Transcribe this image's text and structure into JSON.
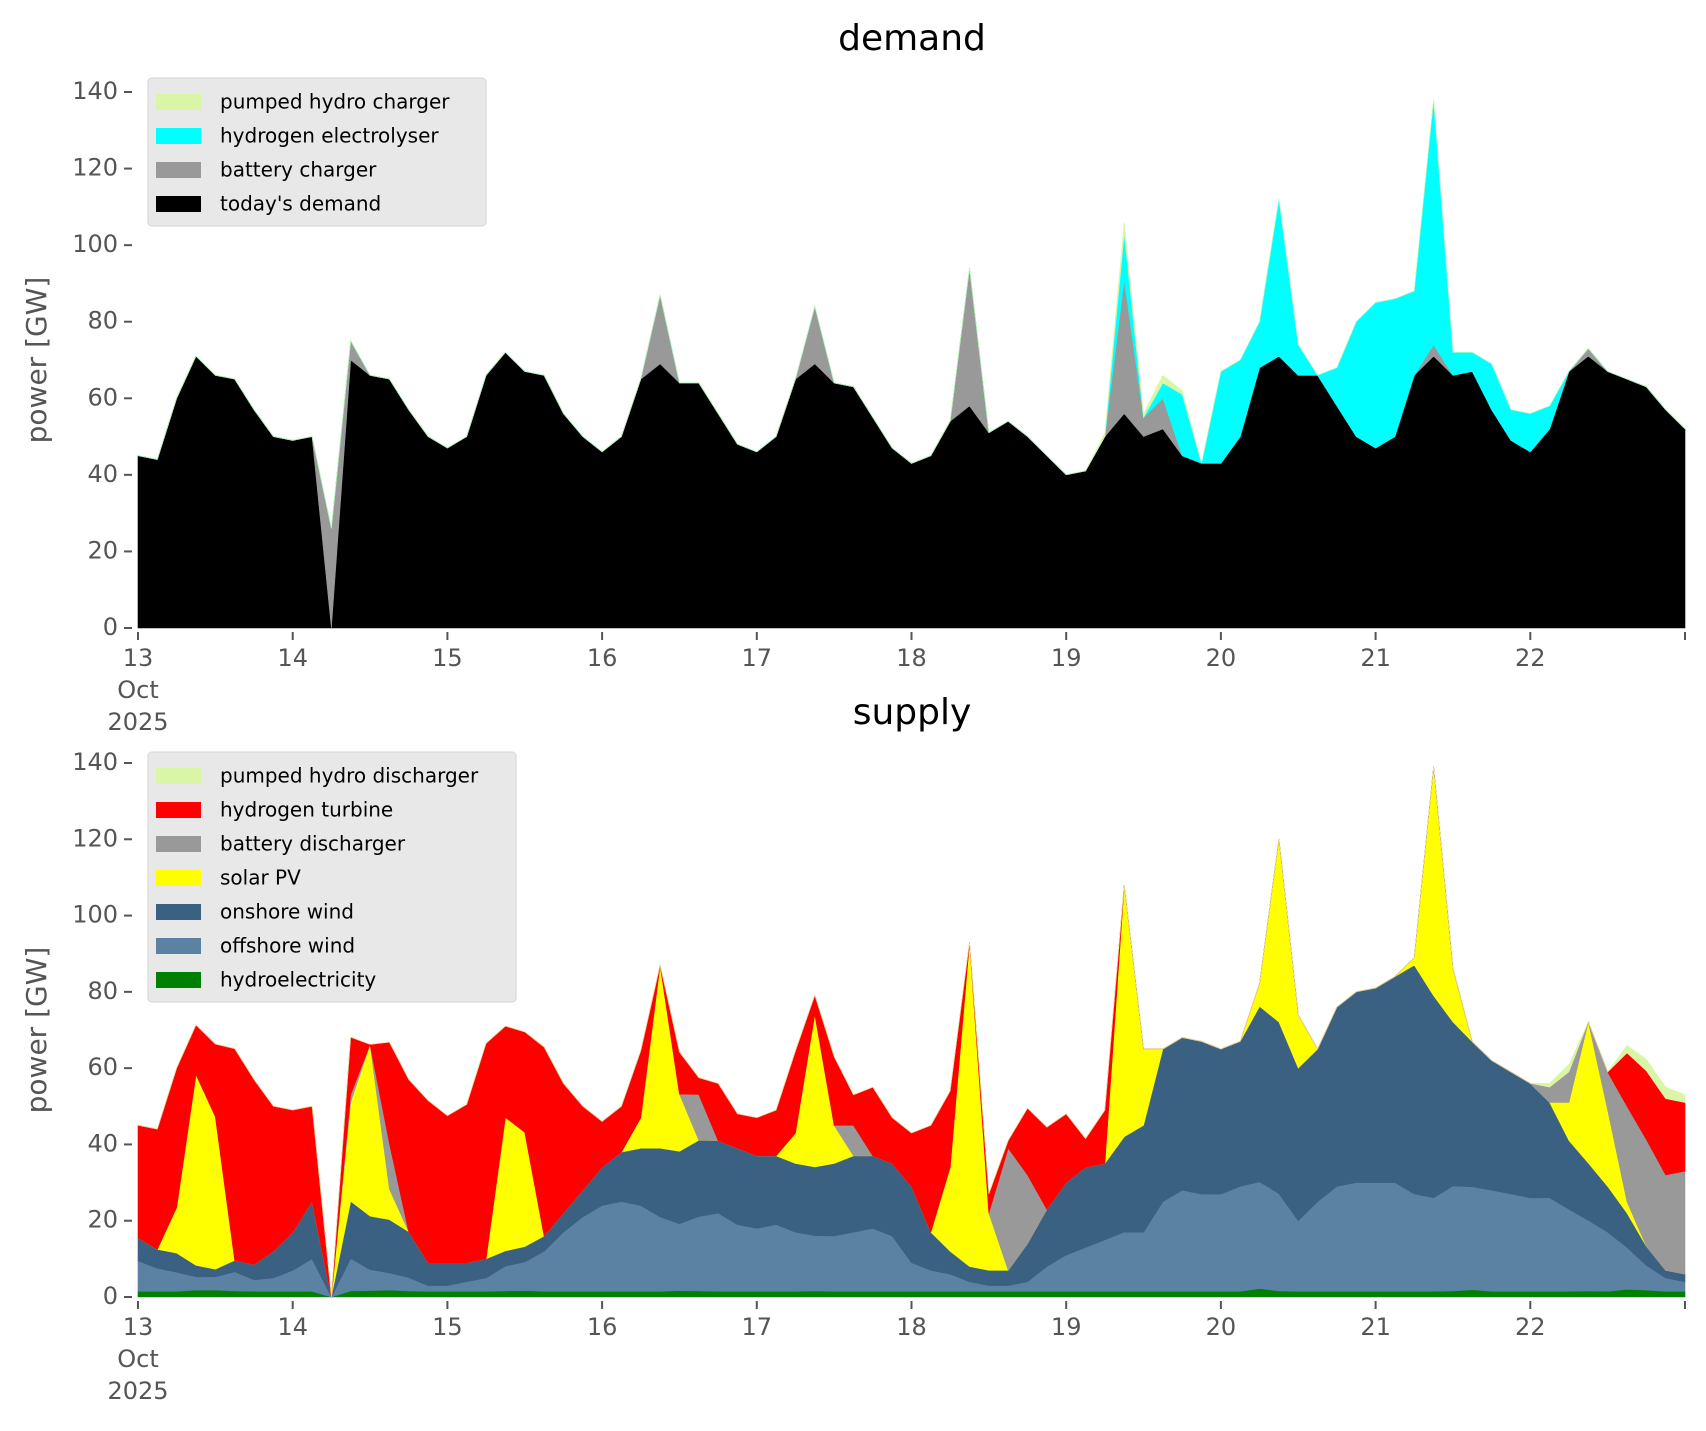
{
  "chart_data": [
    {
      "type": "area",
      "stacked": true,
      "title": "demand",
      "xlabel": "",
      "ylabel": "power [GW]",
      "ylim": [
        0,
        140
      ],
      "xlim": [
        13,
        23
      ],
      "yticks": [
        0,
        20,
        40,
        60,
        80,
        100,
        120,
        140
      ],
      "xticks": [
        {
          "value": 13,
          "label": [
            "13",
            "Oct",
            "2025"
          ]
        },
        {
          "value": 14,
          "label": [
            "14"
          ]
        },
        {
          "value": 15,
          "label": [
            "15"
          ]
        },
        {
          "value": 16,
          "label": [
            "16"
          ]
        },
        {
          "value": 17,
          "label": [
            "17"
          ]
        },
        {
          "value": 18,
          "label": [
            "18"
          ]
        },
        {
          "value": 19,
          "label": [
            "19"
          ]
        },
        {
          "value": 20,
          "label": [
            "20"
          ]
        },
        {
          "value": 21,
          "label": [
            "21"
          ]
        },
        {
          "value": 22,
          "label": [
            "22"
          ]
        },
        {
          "value": 23,
          "label": [
            ""
          ]
        }
      ],
      "grid": false,
      "legend_position": "top-left",
      "x_step_days": 0.125,
      "x_start": 13,
      "series": [
        {
          "name": "today's demand",
          "color": "#000000",
          "values": [
            45,
            44,
            60,
            71,
            66,
            65,
            57,
            50,
            49,
            50,
            0,
            70,
            66,
            65,
            57,
            50,
            47,
            50,
            66,
            72,
            67,
            66,
            56,
            50,
            46,
            50,
            65,
            69,
            64,
            64,
            56,
            48,
            46,
            50,
            65,
            69,
            64,
            63,
            55,
            47,
            43,
            45,
            54,
            58,
            51,
            54,
            50,
            45,
            40,
            41,
            50,
            56,
            50,
            52,
            45,
            43,
            43,
            50,
            68,
            71,
            66,
            66,
            58,
            50,
            47,
            50,
            66,
            71,
            66,
            67,
            57,
            49,
            46,
            52,
            67,
            71,
            67,
            65,
            63,
            57,
            52
          ]
        },
        {
          "name": "battery charger",
          "color": "#999999",
          "values": [
            0,
            0,
            0,
            0,
            0,
            0,
            0,
            0,
            0,
            0,
            26,
            5,
            0,
            0,
            0,
            0,
            0,
            0,
            0,
            0,
            0,
            0,
            0,
            0,
            0,
            0,
            0,
            18,
            0,
            0,
            0,
            0,
            0,
            0,
            0,
            15,
            0,
            0,
            0,
            0,
            0,
            0,
            0,
            36,
            0,
            0,
            0,
            0,
            0,
            0,
            0,
            35,
            5,
            8,
            0,
            0,
            0,
            0,
            0,
            0,
            0,
            0,
            0,
            0,
            0,
            0,
            0,
            3,
            0,
            0,
            0,
            0,
            0,
            0,
            0,
            2,
            0,
            0,
            0,
            0,
            0
          ]
        },
        {
          "name": "hydrogen electrolyser",
          "color": "#00ffff",
          "values": [
            0,
            0,
            0,
            0,
            0,
            0,
            0,
            0,
            0,
            0,
            0,
            0,
            0,
            0,
            0,
            0,
            0,
            0,
            0,
            0,
            0,
            0,
            0,
            0,
            0,
            0,
            0,
            0,
            0,
            0,
            0,
            0,
            0,
            0,
            0,
            0,
            0,
            0,
            0,
            0,
            0,
            0,
            0,
            0,
            0,
            0,
            0,
            0,
            0,
            0,
            0,
            12,
            0,
            4,
            16,
            0,
            24,
            20,
            12,
            41,
            8,
            0,
            10,
            30,
            38,
            36,
            22,
            64,
            6,
            5,
            12,
            8,
            10,
            6,
            0,
            0,
            0,
            0,
            0,
            0,
            0
          ]
        },
        {
          "name": "pumped hydro charger",
          "color": "#d9f5a6",
          "values": [
            0,
            0,
            0,
            0,
            0,
            0,
            0,
            0,
            0,
            0,
            0,
            0,
            0,
            0,
            0,
            0,
            0,
            0,
            0,
            0,
            0,
            0,
            0,
            0,
            0,
            0,
            0,
            0,
            0,
            0,
            0,
            0,
            0,
            0,
            0,
            0,
            0,
            0,
            0,
            0,
            0,
            0,
            0,
            0,
            0,
            0,
            0,
            0,
            0,
            0,
            1,
            3,
            1,
            2,
            1,
            0,
            0,
            0,
            0,
            0,
            0,
            0,
            0,
            0,
            0,
            0,
            0,
            0,
            0,
            0,
            0,
            0,
            0,
            0,
            0,
            0,
            0,
            0,
            0,
            0,
            0
          ]
        }
      ]
    },
    {
      "type": "area",
      "stacked": true,
      "title": "supply",
      "xlabel": "",
      "ylabel": "power [GW]",
      "ylim": [
        0,
        140
      ],
      "xlim": [
        13,
        23
      ],
      "yticks": [
        0,
        20,
        40,
        60,
        80,
        100,
        120,
        140
      ],
      "xticks": [
        {
          "value": 13,
          "label": [
            "13",
            "Oct",
            "2025"
          ]
        },
        {
          "value": 14,
          "label": [
            "14"
          ]
        },
        {
          "value": 15,
          "label": [
            "15"
          ]
        },
        {
          "value": 16,
          "label": [
            "16"
          ]
        },
        {
          "value": 17,
          "label": [
            "17"
          ]
        },
        {
          "value": 18,
          "label": [
            "18"
          ]
        },
        {
          "value": 19,
          "label": [
            "19"
          ]
        },
        {
          "value": 20,
          "label": [
            "20"
          ]
        },
        {
          "value": 21,
          "label": [
            "21"
          ]
        },
        {
          "value": 22,
          "label": [
            "22"
          ]
        },
        {
          "value": 23,
          "label": [
            ""
          ]
        }
      ],
      "grid": false,
      "legend_position": "top-left",
      "x_step_days": 0.125,
      "x_start": 13,
      "series": [
        {
          "name": "hydroelectricity",
          "color": "#008000",
          "values": [
            1.5,
            1.5,
            1.5,
            1.8,
            1.8,
            1.6,
            1.5,
            1.5,
            1.5,
            1.5,
            0,
            1.6,
            1.7,
            1.8,
            1.6,
            1.5,
            1.5,
            1.5,
            1.5,
            1.6,
            1.7,
            1.5,
            1.5,
            1.5,
            1.5,
            1.5,
            1.5,
            1.5,
            1.7,
            1.6,
            1.5,
            1.5,
            1.5,
            1.5,
            1.5,
            1.6,
            1.5,
            1.5,
            1.5,
            1.5,
            1.5,
            1.5,
            1.5,
            1.5,
            1.5,
            1.5,
            1.5,
            1.5,
            1.5,
            1.5,
            1.5,
            1.5,
            1.5,
            1.5,
            1.5,
            1.5,
            1.5,
            1.5,
            2.2,
            1.6,
            1.5,
            1.5,
            1.5,
            1.5,
            1.5,
            1.5,
            1.5,
            1.5,
            1.6,
            1.9,
            1.5,
            1.5,
            1.5,
            1.5,
            1.5,
            1.6,
            1.5,
            2,
            1.8,
            1.5,
            1.5
          ]
        },
        {
          "name": "offshore wind",
          "color": "#5b81a3",
          "values": [
            8,
            6,
            5,
            3.5,
            3.5,
            5,
            3,
            3.5,
            5.5,
            8.5,
            0,
            8.5,
            5.5,
            4.5,
            3.5,
            1.5,
            1.5,
            2.5,
            3.5,
            6.5,
            7.5,
            10.5,
            15.5,
            19.5,
            22.5,
            23.5,
            22.5,
            19.5,
            17.5,
            19.5,
            20.5,
            17.5,
            16.5,
            17.5,
            15.5,
            14.5,
            14.5,
            15.5,
            16.5,
            14.5,
            7.5,
            5.5,
            4.5,
            2.5,
            1.5,
            1.5,
            2.5,
            6.5,
            9.5,
            11.5,
            13.5,
            15.5,
            15.5,
            23.5,
            26.5,
            25.5,
            25.5,
            27.5,
            28,
            25.5,
            18.5,
            23.5,
            27.5,
            28.5,
            28.5,
            28.5,
            25.5,
            24.5,
            27.5,
            27,
            26.5,
            25.5,
            24.5,
            24.5,
            21.5,
            18.5,
            15.5,
            11,
            6.5,
            3.5,
            2.5
          ]
        },
        {
          "name": "onshore wind",
          "color": "#3b6182",
          "values": [
            6,
            5,
            5,
            3,
            2,
            3,
            4,
            7,
            10,
            15,
            0,
            15,
            14,
            14,
            12,
            6,
            6,
            5,
            5,
            4,
            4,
            4,
            5,
            7,
            10,
            13,
            15,
            18,
            19,
            20,
            19,
            20,
            19,
            18,
            18,
            18,
            19,
            20,
            19,
            19,
            20,
            10,
            6,
            4,
            4,
            4,
            10,
            15,
            19,
            21,
            20,
            25,
            28,
            40,
            40,
            40,
            38,
            38,
            46,
            45,
            40,
            40,
            47,
            50,
            51,
            54,
            60,
            53,
            43,
            38,
            34,
            32,
            30,
            25,
            18,
            15,
            12,
            9,
            5,
            2,
            2
          ]
        },
        {
          "name": "solar PV",
          "color": "#ffff00",
          "values": [
            0,
            0,
            12,
            50,
            40,
            0,
            0,
            0,
            0,
            0,
            0,
            26,
            45,
            8,
            0,
            0,
            0,
            0,
            0,
            35,
            30,
            0,
            0,
            0,
            0,
            0,
            8,
            48,
            15,
            0,
            0,
            0,
            0,
            0,
            8,
            40,
            10,
            0,
            0,
            0,
            0,
            0,
            22,
            85,
            15,
            0,
            0,
            0,
            0,
            0,
            0,
            66,
            20,
            0,
            0,
            0,
            0,
            0,
            6,
            48,
            14,
            0,
            0,
            0,
            0,
            0,
            2,
            60,
            14,
            0,
            0,
            0,
            0,
            0,
            10,
            37,
            20,
            3,
            0,
            0,
            0
          ]
        },
        {
          "name": "battery discharger",
          "color": "#999999",
          "values": [
            0,
            0,
            0,
            0,
            0,
            0,
            0,
            0,
            0,
            0,
            0,
            2,
            0,
            12,
            0,
            0,
            0,
            0,
            0,
            0,
            0,
            0,
            0,
            0,
            0,
            0,
            0,
            0,
            0,
            12,
            0,
            0,
            0,
            0,
            0,
            0,
            0,
            8,
            0,
            0,
            0,
            0,
            0,
            0,
            0,
            32,
            18,
            0,
            0,
            0,
            0,
            0,
            0,
            0,
            0,
            0,
            0,
            0,
            0,
            0,
            0,
            0,
            0,
            0,
            0,
            0,
            0,
            0,
            0,
            0,
            0,
            0,
            0,
            4,
            8,
            0,
            10,
            25,
            28,
            25,
            27
          ]
        },
        {
          "name": "hydrogen turbine",
          "color": "#ff0000",
          "values": [
            29.5,
            31.5,
            36.5,
            13,
            19,
            55.5,
            48.5,
            38,
            32,
            25,
            0,
            15,
            0,
            26.5,
            39.9,
            42.5,
            38.5,
            41.5,
            56.5,
            23.9,
            26.3,
            49.5,
            34,
            22,
            12,
            12,
            17.5,
            0,
            11,
            4.4,
            15,
            9,
            10,
            12,
            21.5,
            5,
            18,
            8,
            18,
            12,
            14,
            28,
            20,
            0,
            5,
            2,
            17.5,
            21.5,
            18,
            7.5,
            14,
            0,
            0,
            0,
            0,
            0,
            0,
            0,
            0,
            0,
            0,
            0,
            0,
            0,
            0,
            0,
            0,
            0,
            0,
            0,
            0,
            0,
            0,
            0,
            0,
            0,
            0,
            14,
            18,
            20,
            18
          ]
        },
        {
          "name": "pumped hydro discharger",
          "color": "#d9f5a6",
          "values": [
            0,
            0,
            0,
            0,
            0,
            0,
            0,
            0,
            0,
            0,
            0,
            0,
            0,
            0,
            0,
            0,
            0,
            0,
            0,
            0,
            0,
            0,
            0,
            0,
            0,
            0,
            0,
            0,
            0,
            0,
            0,
            0,
            0,
            0,
            0,
            0,
            0,
            0,
            0,
            0,
            0,
            0,
            0,
            0,
            0,
            0,
            0,
            0,
            0,
            0,
            0,
            0,
            0,
            0,
            0,
            0,
            0,
            0,
            0,
            0,
            0,
            0,
            0,
            0,
            0,
            0,
            0,
            0,
            0,
            0,
            0,
            0,
            0,
            1,
            2,
            0,
            0,
            2,
            3,
            3,
            2
          ]
        }
      ]
    }
  ],
  "legends": [
    {
      "entries": [
        "pumped hydro charger",
        "hydrogen electrolyser",
        "battery charger",
        "today's demand"
      ],
      "colors": [
        "#d9f5a6",
        "#00ffff",
        "#999999",
        "#000000"
      ]
    },
    {
      "entries": [
        "pumped hydro discharger",
        "hydrogen turbine",
        "battery discharger",
        "solar PV",
        "onshore wind",
        "offshore wind",
        "hydroelectricity"
      ],
      "colors": [
        "#d9f5a6",
        "#ff0000",
        "#999999",
        "#ffff00",
        "#3b6182",
        "#5b81a3",
        "#008000"
      ]
    }
  ]
}
